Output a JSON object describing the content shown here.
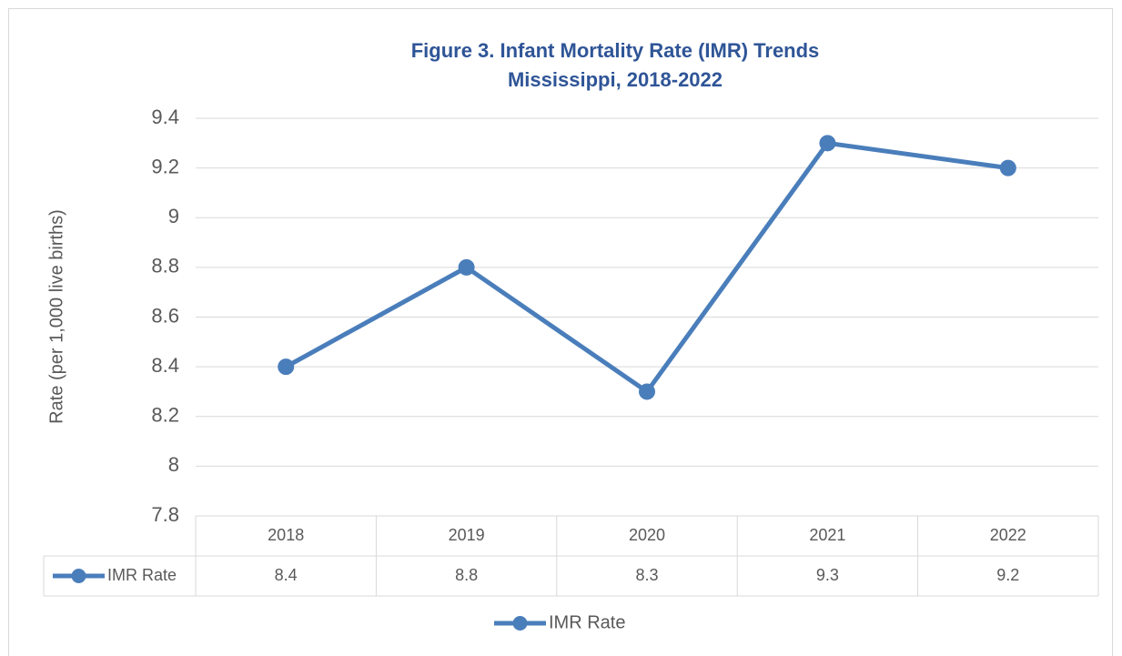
{
  "chart_data": {
    "type": "line",
    "title": "Figure 3. Infant Mortality Rate (IMR) Trends",
    "subtitle": "Mississippi, 2018-2022",
    "y_label": "Rate (per 1,000 live births)",
    "categories": [
      "2018",
      "2019",
      "2020",
      "2021",
      "2022"
    ],
    "series": [
      {
        "name": "IMR Rate",
        "color": "#4a7ebb",
        "values": [
          8.4,
          8.8,
          8.3,
          9.3,
          9.2
        ]
      }
    ],
    "ylim": [
      7.8,
      9.4
    ],
    "yticks": [
      7.8,
      8,
      8.2,
      8.4,
      8.6,
      8.8,
      9,
      9.2,
      9.4
    ],
    "grid": true,
    "legend": "bottom",
    "data_table": true
  }
}
